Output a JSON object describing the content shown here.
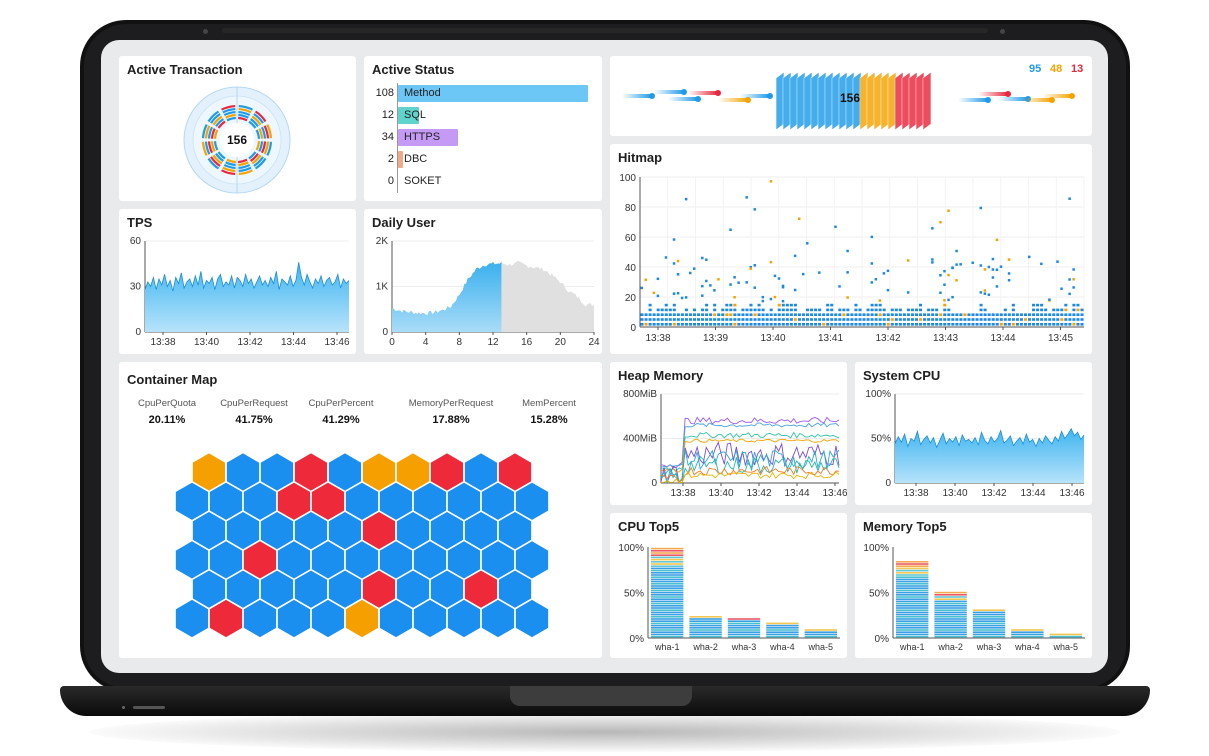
{
  "active_transaction": {
    "title": "Active Transaction",
    "count": "156"
  },
  "active_status": {
    "title": "Active Status",
    "rows": [
      {
        "count": "108",
        "label": "Method",
        "value": 108,
        "color": "#6cc6f6"
      },
      {
        "count": "12",
        "label": "SQL",
        "value": 12,
        "color": "#5fd3cc"
      },
      {
        "count": "34",
        "label": "HTTPS",
        "value": 34,
        "color": "#c59af5"
      },
      {
        "count": "2",
        "label": "DBC",
        "value": 2,
        "color": "#f4a88a"
      },
      {
        "count": "0",
        "label": "SOKET",
        "value": 0,
        "color": "#cccccc"
      }
    ]
  },
  "speed": {
    "count": "156",
    "normal": "95",
    "slow": "48",
    "very_slow": "13",
    "colors": {
      "normal": "#1e9be8",
      "slow": "#f5a300",
      "very_slow": "#e8283c"
    }
  },
  "tps": {
    "title": "TPS"
  },
  "daily_user": {
    "title": "Daily User"
  },
  "hitmap": {
    "title": "Hitmap"
  },
  "container_map": {
    "title": "Container Map",
    "metrics": [
      {
        "name": "CpuPerQuota",
        "value": "20.11%"
      },
      {
        "name": "CpuPerRequest",
        "value": "41.75%"
      },
      {
        "name": "CpuPerPercent",
        "value": "41.29%"
      },
      {
        "name": "MemoryPerRequest",
        "value": "17.88%"
      },
      {
        "name": "MemPercent",
        "value": "15.28%"
      }
    ],
    "colors": {
      "normal": "#1a8ff0",
      "warning": "#f5a000",
      "critical": "#ee2a3a"
    }
  },
  "heap_memory": {
    "title": "Heap Memory"
  },
  "system_cpu": {
    "title": "System CPU"
  },
  "cpu_top5": {
    "title": "CPU Top5"
  },
  "memory_top5": {
    "title": "Memory Top5"
  },
  "chart_data": [
    {
      "id": "tps",
      "type": "area",
      "title": "TPS",
      "x_ticks": [
        "13:38",
        "13:40",
        "13:42",
        "13:44",
        "13:46"
      ],
      "y_ticks": [
        "0",
        "30",
        "60"
      ],
      "ylim": [
        0,
        60
      ],
      "values": [
        28,
        33,
        30,
        36,
        28,
        35,
        31,
        38,
        30,
        34,
        27,
        36,
        32,
        39,
        29,
        33,
        35,
        30,
        37,
        31,
        40,
        29,
        34,
        32,
        36,
        28,
        35,
        38,
        30,
        33,
        31,
        37,
        29,
        36,
        34,
        30,
        38,
        32,
        35,
        29,
        33,
        37,
        31,
        34,
        30,
        36,
        32,
        40,
        28,
        35,
        33,
        31,
        37,
        30,
        34,
        46,
        36,
        31,
        38,
        33,
        29,
        35,
        32,
        37,
        30,
        34,
        36,
        31,
        33,
        38,
        29,
        35,
        32,
        34
      ]
    },
    {
      "id": "daily_user",
      "type": "area",
      "title": "Daily User",
      "x_ticks": [
        "0",
        "4",
        "8",
        "12",
        "16",
        "20",
        "24"
      ],
      "y_ticks": [
        "0",
        "1K",
        "2K"
      ],
      "ylim": [
        0,
        2000
      ],
      "xlim": [
        0,
        24
      ],
      "today_until_hour": 13,
      "values": [
        520,
        470,
        440,
        420,
        410,
        430,
        480,
        560,
        820,
        1150,
        1380,
        1480,
        1500,
        1510,
        1480,
        1520,
        1460,
        1420,
        1380,
        1250,
        1100,
        900,
        780,
        600
      ]
    },
    {
      "id": "hitmap",
      "type": "scatter",
      "title": "Hitmap",
      "x_ticks": [
        "13:38",
        "13:39",
        "13:40",
        "13:41",
        "13:42",
        "13:43",
        "13:44",
        "13:45"
      ],
      "y_ticks": [
        "0",
        "20",
        "40",
        "60",
        "80",
        "100"
      ],
      "ylim": [
        0,
        100
      ],
      "colors": {
        "normal": "#1e88e5",
        "slow": "#f5a300"
      }
    },
    {
      "id": "heap_memory",
      "type": "line",
      "title": "Heap Memory",
      "x_ticks": [
        "13:38",
        "13:40",
        "13:42",
        "13:44",
        "13:46"
      ],
      "y_ticks": [
        "0",
        "400MiB",
        "800MiB"
      ],
      "ylim": [
        0,
        800
      ],
      "series": [
        {
          "color": "#9b59f5",
          "base": 560,
          "noise": 30
        },
        {
          "color": "#4aa3df",
          "base": 520,
          "noise": 20
        },
        {
          "color": "#2ec4a6",
          "base": 430,
          "noise": 25
        },
        {
          "color": "#f5a300",
          "base": 380,
          "noise": 15
        },
        {
          "color": "#7a4dd8",
          "base": 260,
          "noise": 110
        },
        {
          "color": "#2ca8d8",
          "base": 210,
          "noise": 90
        },
        {
          "color": "#26b9a6",
          "base": 160,
          "noise": 80
        },
        {
          "color": "#f07b2b",
          "base": 110,
          "noise": 40
        },
        {
          "color": "#e8b400",
          "base": 70,
          "noise": 30
        }
      ]
    },
    {
      "id": "system_cpu",
      "type": "area",
      "title": "System CPU",
      "x_ticks": [
        "13:38",
        "13:40",
        "13:42",
        "13:44",
        "13:46"
      ],
      "y_ticks": [
        "0",
        "50%",
        "100%"
      ],
      "ylim": [
        0,
        100
      ],
      "values": [
        44,
        52,
        46,
        55,
        41,
        50,
        47,
        58,
        43,
        49,
        53,
        45,
        51,
        40,
        48,
        56,
        44,
        50,
        46,
        52,
        42,
        54,
        47,
        49,
        45,
        51,
        43,
        57,
        48,
        44,
        52,
        46,
        50,
        59,
        45,
        48,
        53,
        42,
        47,
        51,
        44,
        55,
        46,
        49,
        41,
        50,
        45,
        53,
        48,
        44,
        52,
        47,
        58,
        50,
        55,
        61,
        53,
        57,
        49,
        54
      ]
    },
    {
      "id": "cpu_top5",
      "type": "bar",
      "title": "CPU Top5",
      "categories": [
        "wha-1",
        "wha-2",
        "wha-3",
        "wha-4",
        "wha-5"
      ],
      "values": [
        100,
        25,
        22,
        17,
        11
      ],
      "y_ticks": [
        "0%",
        "50%",
        "100%"
      ],
      "ylim": [
        0,
        100
      ]
    },
    {
      "id": "memory_top5",
      "type": "bar",
      "title": "Memory Top5",
      "categories": [
        "wha-1",
        "wha-2",
        "wha-3",
        "wha-4",
        "wha-5"
      ],
      "values": [
        87,
        53,
        32,
        12,
        7
      ],
      "y_ticks": [
        "0%",
        "50%",
        "100%"
      ],
      "ylim": [
        0,
        100
      ]
    }
  ]
}
